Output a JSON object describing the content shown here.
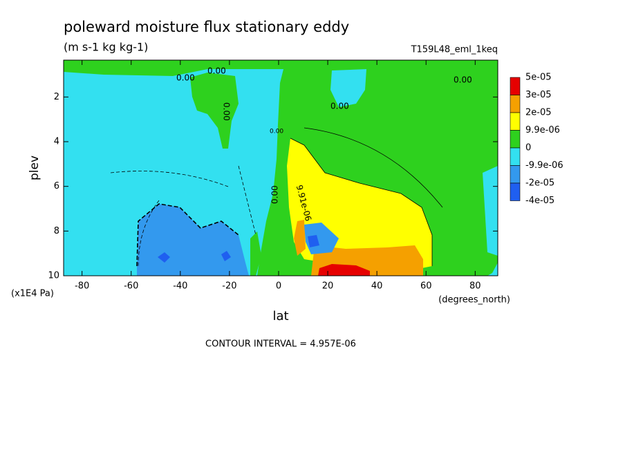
{
  "chart_data": {
    "type": "contour",
    "title": "poleward moisture flux stationary eddy",
    "subtitle": "(m s-1 kg kg-1)",
    "annotation": "T159L48_eml_1keq",
    "x_label": "lat",
    "x_units": "(degrees_north)",
    "y_label": "plev",
    "y_units": "(x1E4 Pa)",
    "footer": "CONTOUR INTERVAL = 4.957E-06",
    "xlim": [
      -87.5,
      89.2
    ],
    "xticks": [
      -80,
      -60,
      -40,
      -20,
      0,
      20,
      40,
      60,
      80
    ],
    "ylim": [
      10,
      0.35
    ],
    "yticks": [
      2,
      4,
      6,
      8,
      10
    ],
    "levels": [
      {
        "value": 5e-05,
        "label": "5e-05"
      },
      {
        "value": 3e-05,
        "label": "3e-05"
      },
      {
        "value": 2e-05,
        "label": "2e-05"
      },
      {
        "value": 9.9e-06,
        "label": "9.9e-06"
      },
      0,
      {
        "value": -9.9e-06,
        "label": "-9.9e-06"
      },
      {
        "value": -2e-05,
        "label": "-2e-05"
      },
      {
        "value": -4e-05,
        "label": "-4e-05"
      }
    ],
    "colors": [
      "#e60000",
      "#f5a000",
      "#ffff00",
      "#2ed11e",
      "#33e0f0",
      "#3399ee",
      "#1f5ff0"
    ],
    "contour_labels": [
      "0.00",
      "0.00",
      "0.00",
      "0.00",
      "0.00",
      "0.00",
      "9.91e-06",
      "0.00"
    ]
  }
}
